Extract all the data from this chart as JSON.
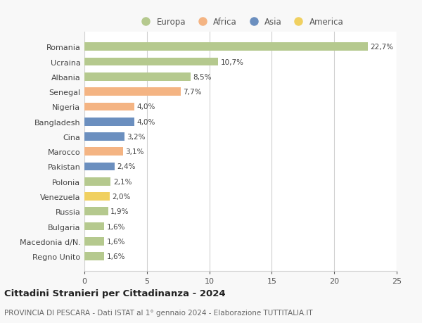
{
  "countries": [
    "Romania",
    "Ucraina",
    "Albania",
    "Senegal",
    "Nigeria",
    "Bangladesh",
    "Cina",
    "Marocco",
    "Pakistan",
    "Polonia",
    "Venezuela",
    "Russia",
    "Bulgaria",
    "Macedonia d/N.",
    "Regno Unito"
  ],
  "values": [
    22.7,
    10.7,
    8.5,
    7.7,
    4.0,
    4.0,
    3.2,
    3.1,
    2.4,
    2.1,
    2.0,
    1.9,
    1.6,
    1.6,
    1.6
  ],
  "labels": [
    "22,7%",
    "10,7%",
    "8,5%",
    "7,7%",
    "4,0%",
    "4,0%",
    "3,2%",
    "3,1%",
    "2,4%",
    "2,1%",
    "2,0%",
    "1,9%",
    "1,6%",
    "1,6%",
    "1,6%"
  ],
  "colors": [
    "#b5c98e",
    "#b5c98e",
    "#b5c98e",
    "#f4b483",
    "#f4b483",
    "#6b8fbf",
    "#6b8fbf",
    "#f4b483",
    "#6b8fbf",
    "#b5c98e",
    "#f0d060",
    "#b5c98e",
    "#b5c98e",
    "#b5c98e",
    "#b5c98e"
  ],
  "legend_names": [
    "Europa",
    "Africa",
    "Asia",
    "America"
  ],
  "legend_colors": [
    "#b5c98e",
    "#f4b483",
    "#6b8fbf",
    "#f0d060"
  ],
  "xlim": [
    0,
    25
  ],
  "xticks": [
    0,
    5,
    10,
    15,
    20,
    25
  ],
  "title": "Cittadini Stranieri per Cittadinanza - 2024",
  "subtitle": "PROVINCIA DI PESCARA - Dati ISTAT al 1° gennaio 2024 - Elaborazione TUTTITALIA.IT",
  "background_color": "#f8f8f8",
  "plot_bg_color": "#ffffff",
  "grid_color": "#d0d0d0",
  "bar_height": 0.55,
  "label_fontsize": 7.5,
  "ytick_fontsize": 8.0,
  "xtick_fontsize": 8.0,
  "legend_fontsize": 8.5,
  "title_fontsize": 9.5,
  "subtitle_fontsize": 7.5
}
